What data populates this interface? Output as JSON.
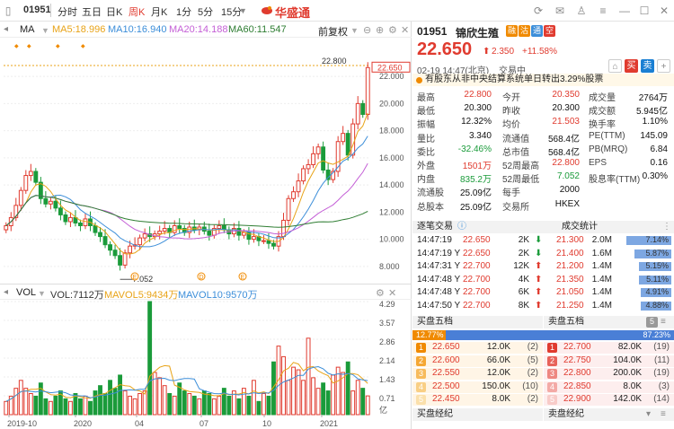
{
  "titlebar": {
    "code": "01951",
    "periods": [
      "分时",
      "五日",
      "日K",
      "周K",
      "月K",
      "1分",
      "5分",
      "15分"
    ],
    "active_period": "周K",
    "brand": "华盛通"
  },
  "chart_header": {
    "ma_label": "MA",
    "ma5": "MA5:18.996",
    "ma10": "MA10:16.940",
    "ma20": "MA20:14.188",
    "ma60": "MA60:11.547",
    "adjust": "前复权",
    "colors": {
      "ma5": "#e8a317",
      "ma10": "#3c8ed9",
      "ma20": "#c45fd6",
      "ma60": "#2e7d32",
      "up": "#e03b2f",
      "down": "#1a9b3a"
    }
  },
  "price_axis": [
    "22.000",
    "20.000",
    "18.000",
    "16.000",
    "14.000",
    "12.000",
    "10.000",
    "8.000"
  ],
  "price_labels": {
    "current": "22.650",
    "high_mark": "22.800",
    "low_mark": "7.052"
  },
  "vol_header": {
    "label": "VOL",
    "vol": "VOL:7112万",
    "mavol5": "MAVOL5:9434万",
    "mavol10": "MAVOL10:9570万"
  },
  "vol_axis": [
    "4.29",
    "3.57",
    "2.86",
    "2.14",
    "1.43",
    "0.71",
    "亿"
  ],
  "time_axis": [
    "2019-10",
    "2020",
    "04",
    "07",
    "10",
    "2021"
  ],
  "chart_data": {
    "type": "candlestick",
    "price_ylim": [
      7.0,
      23.0
    ],
    "weekly_close": [
      11.0,
      11.6,
      12.5,
      13.6,
      14.7,
      15.0,
      14.2,
      13.0,
      12.6,
      12.8,
      12.3,
      11.8,
      11.3,
      11.6,
      11.2,
      11.0,
      11.5,
      11.0,
      10.5,
      10.2,
      9.6,
      9.2,
      8.8,
      8.1,
      9.0,
      9.5,
      9.6,
      10.1,
      10.4,
      10.2,
      10.4,
      10.6,
      10.8,
      10.5,
      11.0,
      10.8,
      10.5,
      10.9,
      10.7,
      10.9,
      10.6,
      10.3,
      10.8,
      11.0,
      10.7,
      10.4,
      10.8,
      10.3,
      10.5,
      10.0,
      10.2,
      9.9,
      9.9,
      9.7,
      9.5,
      10.2,
      11.4,
      13.0,
      13.5,
      14.3,
      15.2,
      15.5,
      16.3,
      16.8,
      15.1,
      14.4,
      15.0,
      17.2,
      17.8,
      16.2,
      18.5,
      20.0,
      19.2,
      22.65
    ],
    "volume_yi": [
      0.5,
      0.7,
      1.0,
      1.3,
      1.0,
      0.8,
      0.7,
      1.2,
      0.6,
      0.5,
      0.7,
      0.9,
      0.6,
      0.5,
      0.8,
      0.6,
      0.7,
      0.5,
      0.9,
      1.1,
      0.8,
      1.3,
      1.0,
      1.5,
      0.9,
      0.7,
      0.6,
      0.8,
      0.9,
      4.29,
      1.6,
      1.4,
      1.1,
      0.8,
      0.7,
      1.2,
      0.9,
      0.8,
      0.7,
      0.6,
      0.9,
      0.8,
      0.6,
      0.7,
      1.0,
      0.7,
      0.9,
      0.6,
      1.0,
      0.7,
      1.3,
      0.5,
      0.8,
      0.7,
      2.0,
      2.6,
      2.2,
      1.3,
      1.8,
      1.7,
      1.3,
      2.9,
      1.4,
      1.0,
      1.2,
      0.9,
      1.5,
      1.8,
      1.6,
      2.0,
      0.9,
      1.3,
      1.0,
      0.711
    ],
    "vol_ylim": [
      0,
      4.29
    ]
  },
  "quote": {
    "code": "01951",
    "name": "锦欣生殖",
    "badges": [
      "融",
      "沽",
      "通",
      "空"
    ],
    "price": "22.650",
    "change": "2.350",
    "change_pct": "+11.58%",
    "time": "02-19  14:47(北京)",
    "status": "交易中",
    "buy": "买",
    "sell": "卖",
    "notice": "有股东从非中央结算系统单日转出3.29%股票"
  },
  "stats": [
    [
      [
        "最高",
        "22.800",
        "red"
      ],
      [
        "今开",
        "20.350",
        "red"
      ],
      [
        "成交量",
        "2764万",
        "blk"
      ]
    ],
    [
      [
        "最低",
        "20.300",
        "blk"
      ],
      [
        "昨收",
        "20.300",
        "blk"
      ],
      [
        "成交额",
        "5.945亿",
        "blk"
      ]
    ],
    [
      [
        "振幅",
        "12.32%",
        "blk"
      ],
      [
        "均价",
        "21.503",
        "red"
      ],
      [
        "换手率",
        "1.10%",
        "blk"
      ]
    ],
    [
      [
        "量比",
        "3.340",
        "blk"
      ],
      [
        "流通值",
        "568.4亿",
        "blk"
      ],
      [
        "PE(TTM)",
        "145.09",
        "blk"
      ]
    ],
    [
      [
        "委比",
        "-32.46%",
        "green"
      ],
      [
        "总市值",
        "568.4亿",
        "blk"
      ],
      [
        "PB(MRQ)",
        "6.84",
        "blk"
      ]
    ],
    [
      [
        "外盘",
        "1501万",
        "red"
      ],
      [
        "52周最高",
        "22.800",
        "red"
      ],
      [
        "EPS",
        "0.16",
        "blk"
      ]
    ],
    [
      [
        "内盘",
        "835.2万",
        "green"
      ],
      [
        "52周最低",
        "7.052",
        "green"
      ],
      [
        "股息率(TTM)",
        "0.30%",
        "blk"
      ]
    ],
    [
      [
        "流通股",
        "25.09亿",
        "blk"
      ],
      [
        "每手",
        "2000",
        "blk"
      ],
      [
        "",
        "",
        "blk"
      ]
    ],
    [
      [
        "总股本",
        "25.09亿",
        "blk"
      ],
      [
        "交易所",
        "HKEX",
        "blk"
      ],
      [
        "",
        "",
        "blk"
      ]
    ]
  ],
  "ticks_header": {
    "left": "逐笔交易",
    "right": "成交统计"
  },
  "ticks": [
    [
      "14:47:19",
      "22.650",
      "2K",
      "down"
    ],
    [
      "14:47:19 Y",
      "22.650",
      "2K",
      "down"
    ],
    [
      "14:47:31 Y",
      "22.700",
      "12K",
      "up"
    ],
    [
      "14:47:48 Y",
      "22.700",
      "4K",
      "up"
    ],
    [
      "14:47:48 Y",
      "22.700",
      "6K",
      "up"
    ],
    [
      "14:47:50 Y",
      "22.700",
      "8K",
      "up"
    ]
  ],
  "stat_rows": [
    [
      "21.300",
      "2.0M",
      "7.14%",
      0.71
    ],
    [
      "21.400",
      "1.6M",
      "5.87%",
      0.59
    ],
    [
      "21.200",
      "1.4M",
      "5.15%",
      0.52
    ],
    [
      "21.350",
      "1.4M",
      "5.11%",
      0.51
    ],
    [
      "21.050",
      "1.4M",
      "4.91%",
      0.49
    ],
    [
      "21.250",
      "1.4M",
      "4.88%",
      0.49
    ]
  ],
  "orderbook": {
    "bid_title": "买盘五档",
    "ask_title": "卖盘五档",
    "level_btn": "5",
    "bid_pct": "12.77%",
    "ask_pct": "87.23%",
    "bid_fraction": 0.1277,
    "bids": [
      [
        "1",
        "22.650",
        "12.0K",
        "(2)"
      ],
      [
        "2",
        "22.600",
        "66.0K",
        "(5)"
      ],
      [
        "3",
        "22.550",
        "12.0K",
        "(2)"
      ],
      [
        "4",
        "22.500",
        "150.0K",
        "(10)"
      ],
      [
        "5",
        "22.450",
        "8.0K",
        "(2)"
      ]
    ],
    "asks": [
      [
        "1",
        "22.700",
        "82.0K",
        "(19)"
      ],
      [
        "2",
        "22.750",
        "104.0K",
        "(11)"
      ],
      [
        "3",
        "22.800",
        "200.0K",
        "(19)"
      ],
      [
        "4",
        "22.850",
        "8.0K",
        "(3)"
      ],
      [
        "5",
        "22.900",
        "142.0K",
        "(14)"
      ]
    ]
  },
  "brokers": {
    "bid": "买盘经纪",
    "ask": "卖盘经纪"
  }
}
